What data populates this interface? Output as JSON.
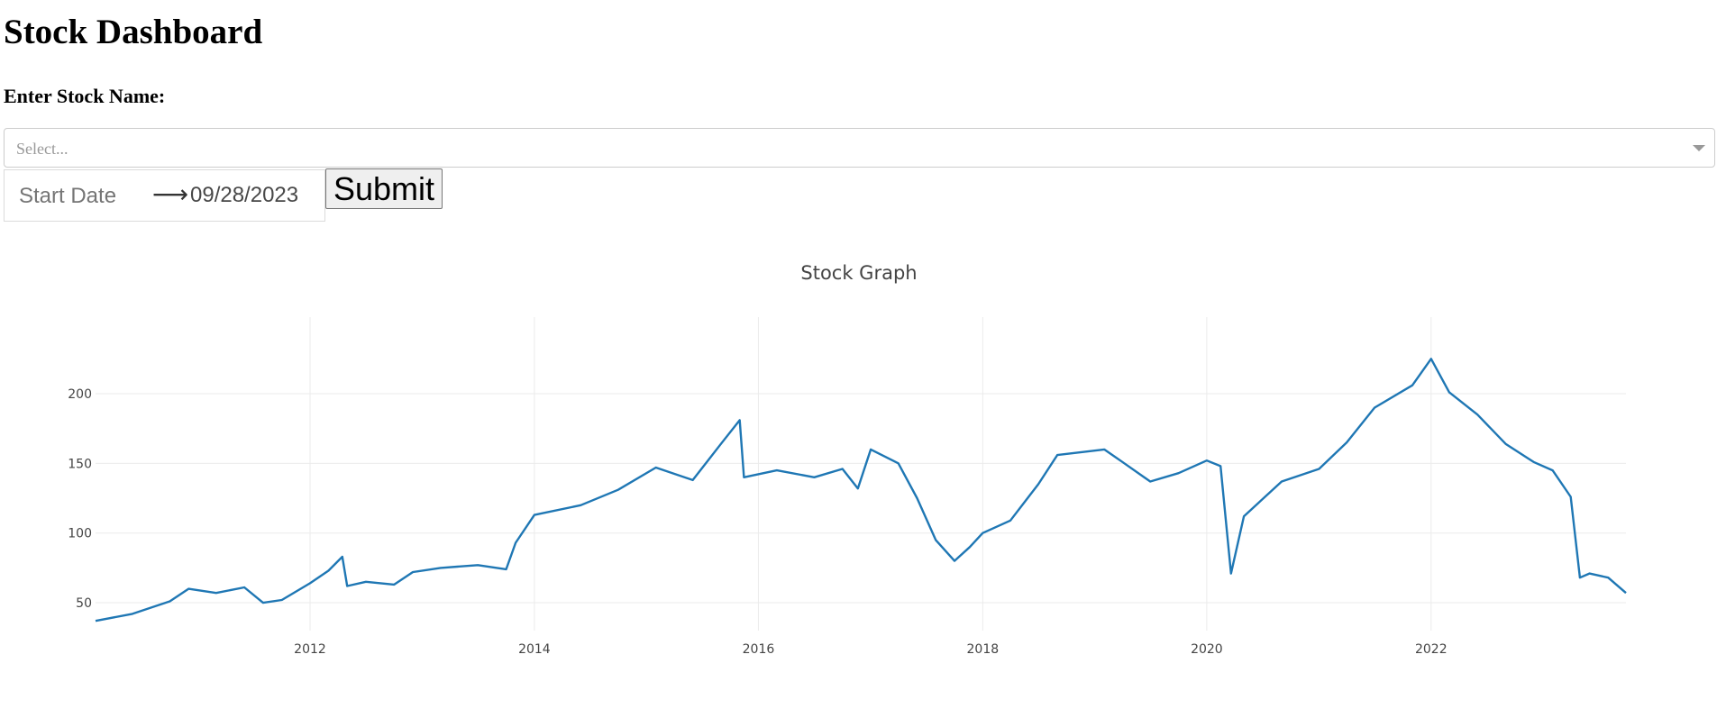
{
  "header": {
    "title": "Stock Dashboard"
  },
  "form": {
    "stock_label": "Enter Stock Name:",
    "select_placeholder": "Select...",
    "start_placeholder": "Start Date",
    "end_date": "09/28/2023",
    "submit_label": "Submit"
  },
  "chart_data": {
    "type": "line",
    "title": "Stock Graph",
    "xlabel": "",
    "ylabel": "",
    "grid": true,
    "line_color": "#1f77b4",
    "x_ticks": [
      "2012",
      "2014",
      "2016",
      "2018",
      "2020",
      "2022"
    ],
    "y_ticks": [
      50,
      100,
      150,
      200
    ],
    "xlim": [
      "2010-02-01",
      "2023-09-28"
    ],
    "ylim": [
      30,
      242
    ],
    "series": [
      {
        "x": [
          "2010-02-01",
          "2010-06-01",
          "2010-10-01",
          "2010-12-01",
          "2011-03-01",
          "2011-06-01",
          "2011-08-01",
          "2011-10-01",
          "2012-01-01",
          "2012-03-01",
          "2012-04-15",
          "2012-05-01",
          "2012-07-01",
          "2012-10-01",
          "2012-12-01",
          "2013-03-01",
          "2013-07-01",
          "2013-10-01",
          "2013-11-01",
          "2014-01-01",
          "2014-06-01",
          "2014-10-01",
          "2015-02-01",
          "2015-06-01",
          "2015-09-01",
          "2015-11-01",
          "2015-11-15",
          "2016-03-01",
          "2016-07-01",
          "2016-10-01",
          "2016-11-20",
          "2017-01-01",
          "2017-04-01",
          "2017-06-01",
          "2017-08-01",
          "2017-10-01",
          "2017-11-20",
          "2018-01-01",
          "2018-04-01",
          "2018-07-01",
          "2018-09-01",
          "2019-02-01",
          "2019-04-01",
          "2019-07-01",
          "2019-10-01",
          "2020-01-01",
          "2020-02-15",
          "2020-03-20",
          "2020-05-01",
          "2020-09-01",
          "2021-01-01",
          "2021-04-01",
          "2021-07-01",
          "2021-11-01",
          "2022-01-01",
          "2022-03-01",
          "2022-06-01",
          "2022-09-01",
          "2022-12-01",
          "2023-02-01",
          "2023-04-01",
          "2023-05-01",
          "2023-06-01",
          "2023-08-01",
          "2023-09-28"
        ],
        "y": [
          37,
          42,
          51,
          60,
          57,
          61,
          50,
          52,
          64,
          73,
          83,
          62,
          65,
          63,
          72,
          75,
          77,
          74,
          93,
          113,
          120,
          131,
          147,
          138,
          164,
          181,
          140,
          145,
          140,
          146,
          132,
          160,
          150,
          125,
          95,
          80,
          90,
          100,
          109,
          135,
          156,
          160,
          151,
          137,
          143,
          152,
          148,
          71,
          112,
          137,
          146,
          165,
          190,
          206,
          225,
          201,
          185,
          164,
          151,
          145,
          126,
          68,
          71,
          68,
          57
        ]
      }
    ]
  }
}
